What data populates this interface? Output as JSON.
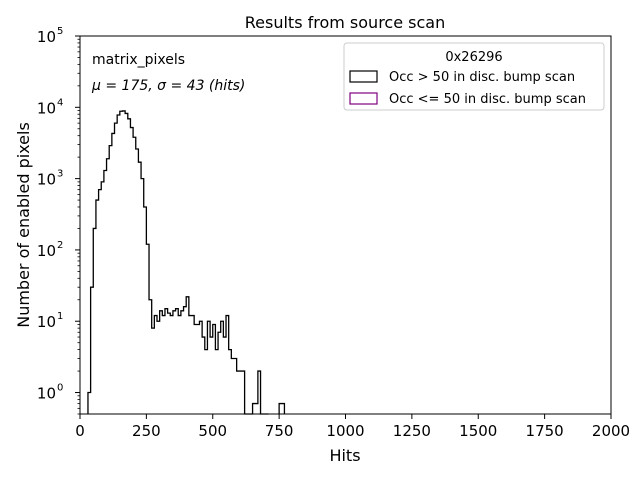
{
  "chart_data": {
    "type": "step-histogram",
    "title": "Results from source scan",
    "xlabel": "Hits",
    "ylabel": "Number of enabled pixels",
    "xlim": [
      0,
      2000
    ],
    "ylim": [
      0.5,
      100000
    ],
    "yscale": "log",
    "xticks": [
      0,
      250,
      500,
      750,
      1000,
      1250,
      1500,
      1750,
      2000
    ],
    "xtick_labels": [
      "0",
      "250",
      "500",
      "750",
      "1000",
      "1250",
      "1500",
      "1750",
      "2000"
    ],
    "yticks": [
      1,
      10,
      100,
      1000,
      10000,
      100000
    ],
    "ytick_labels": [
      "10",
      "10",
      "10",
      "10",
      "10",
      "10"
    ],
    "ytick_exponents": [
      "0",
      "1",
      "2",
      "3",
      "4",
      "5"
    ],
    "annotation_name": "matrix_pixels",
    "annotation_stats": "μ = 175, σ = 43 (hits)",
    "legend": {
      "title": "0x26296",
      "placement": "upper right",
      "entries": [
        {
          "label": "Occ > 50 in disc. bump scan",
          "color": "#000000"
        },
        {
          "label": "Occ <= 50 in disc. bump scan",
          "color": "#800080"
        }
      ]
    },
    "series": [
      {
        "name": "Occ > 50 in disc. bump scan",
        "color": "#000000",
        "bin_width": 10,
        "bins_x": [
          30,
          40,
          50,
          60,
          70,
          80,
          90,
          100,
          110,
          120,
          130,
          140,
          150,
          160,
          170,
          180,
          190,
          200,
          210,
          220,
          230,
          240,
          250,
          260,
          270,
          280,
          290,
          300,
          310,
          320,
          330,
          340,
          350,
          360,
          370,
          380,
          390,
          400,
          410,
          420,
          430,
          440,
          450,
          460,
          470,
          480,
          490,
          500,
          510,
          520,
          530,
          540,
          550,
          560,
          570,
          580,
          590,
          600,
          610,
          620,
          630,
          640,
          650,
          660,
          670,
          680,
          690,
          700,
          750,
          760
        ],
        "bins_y": [
          1,
          30,
          200,
          500,
          700,
          900,
          1300,
          1900,
          2900,
          4300,
          6000,
          7800,
          8800,
          8900,
          8200,
          6900,
          5200,
          3800,
          2600,
          1700,
          1000,
          400,
          120,
          20,
          8,
          12,
          10,
          14,
          12,
          15,
          13,
          12,
          14,
          15,
          12,
          14,
          16,
          22,
          12,
          12,
          9,
          9,
          10,
          6,
          4,
          10,
          6,
          9,
          4,
          7,
          10,
          6,
          12,
          4,
          3,
          3,
          2,
          2,
          2,
          0,
          0,
          0,
          0.7,
          0.7,
          2,
          0,
          0,
          0,
          0.7,
          0.7
        ]
      },
      {
        "name": "Occ <= 50 in disc. bump scan",
        "color": "#800080",
        "bin_width": 10,
        "bins_x": [],
        "bins_y": []
      }
    ]
  }
}
